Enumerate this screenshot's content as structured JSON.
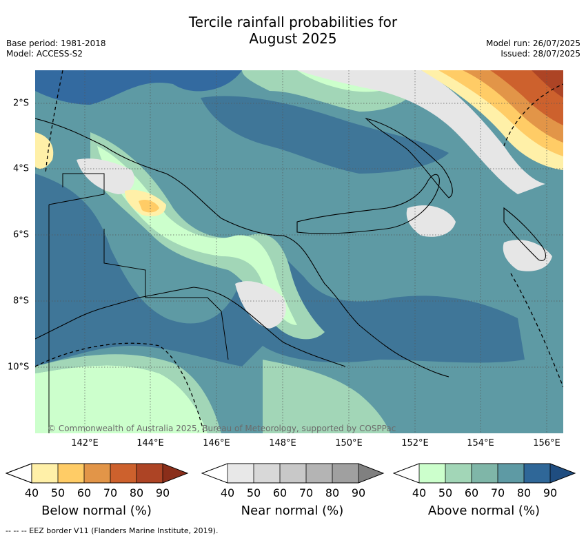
{
  "title_line1": "Tercile rainfall probabilities for",
  "title_line2": "August 2025",
  "base_period": "Base period: 1981-2018",
  "model": "Model: ACCESS-S2",
  "model_run": "Model run: 26/07/2025",
  "issued": "Issued: 28/07/2025",
  "copyright": "© Commonwealth of Australia 2025, Bureau of Meteorology, supported by COSPPac",
  "footer": "-- -- -- EEZ border V11 (Flanders Marine Institute, 2019).",
  "map": {
    "lat_labels": [
      "2°S",
      "4°S",
      "6°S",
      "8°S",
      "10°S"
    ],
    "lon_labels": [
      "142°E",
      "144°E",
      "146°E",
      "148°E",
      "150°E",
      "152°E",
      "154°E",
      "156°E"
    ]
  },
  "colorbars": [
    {
      "label": "Below normal (%)",
      "ticks": [
        "40",
        "50",
        "60",
        "70",
        "80",
        "90"
      ],
      "colors": [
        "#ffffff",
        "#fff0a8",
        "#ffcc66",
        "#e29548",
        "#cd612d",
        "#ad4425",
        "#8a2e1a"
      ]
    },
    {
      "label": "Near normal (%)",
      "ticks": [
        "40",
        "50",
        "60",
        "70",
        "80",
        "90"
      ],
      "colors": [
        "#ffffff",
        "#e8e8e8",
        "#d8d8d8",
        "#c8c8c8",
        "#b4b4b4",
        "#a0a0a0",
        "#808080"
      ]
    },
    {
      "label": "Above normal (%)",
      "ticks": [
        "40",
        "50",
        "60",
        "70",
        "80",
        "90"
      ],
      "colors": [
        "#ffffff",
        "#ccffcc",
        "#a2d6b7",
        "#7fb6a8",
        "#5e9aa4",
        "#2f6798",
        "#1f4d80"
      ]
    }
  ]
}
